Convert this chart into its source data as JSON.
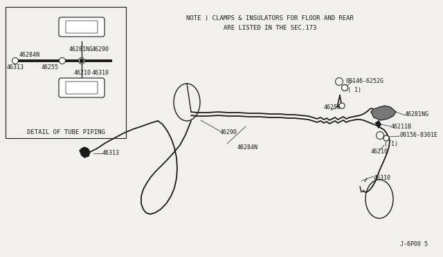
{
  "bg_color": "#f2f0ec",
  "line_color": "#1a1a1a",
  "note_line1": "NOTE ) CLAMPS & INSULATORS FOR FLOOR AND REAR",
  "note_line2": "ARE LISTED IN THE SEC.173",
  "footer_text": "J-6P00 5",
  "detail_label": "DETAIL OF TUBE PIPING",
  "font_size": 6.0,
  "title_font_size": 6.5
}
